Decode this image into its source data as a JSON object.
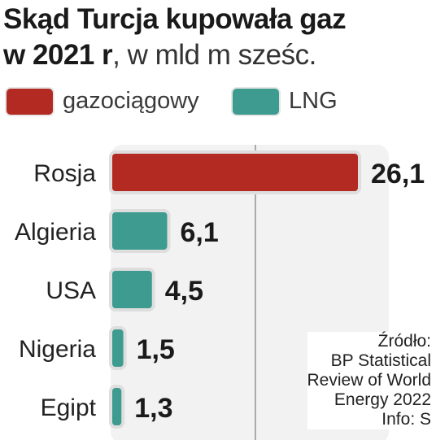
{
  "header": {
    "title_bold_line1": "Skąd Turcja kupowała gaz",
    "title_bold_line2": "w 2021 r",
    "title_light_line2": ", w mld m sześc."
  },
  "legend": [
    {
      "label": "gazociągowy",
      "color": "#b22a22"
    },
    {
      "label": "LNG",
      "color": "#3e9b8f"
    }
  ],
  "source": {
    "lines": [
      "Źródło:",
      "BP Statistical",
      "Review  of World",
      "Energy 2022",
      "Info: S"
    ]
  },
  "chart_data": {
    "type": "bar",
    "orientation": "horizontal",
    "title": "Skąd Turcja kupowała gaz w 2021 r, w mld m sześc.",
    "categories": [
      "Rosja",
      "Algieria",
      "USA",
      "Nigeria",
      "Egipt"
    ],
    "values": [
      26.1,
      6.1,
      4.5,
      1.5,
      1.3
    ],
    "value_labels": [
      "26,1",
      "6,1",
      "4,5",
      "1,5",
      "1,3"
    ],
    "bar_types": [
      "gazociągowy",
      "LNG",
      "LNG",
      "LNG",
      "LNG"
    ],
    "xlim": [
      0,
      26.1
    ],
    "legend_position": "top-left",
    "grid": false
  }
}
